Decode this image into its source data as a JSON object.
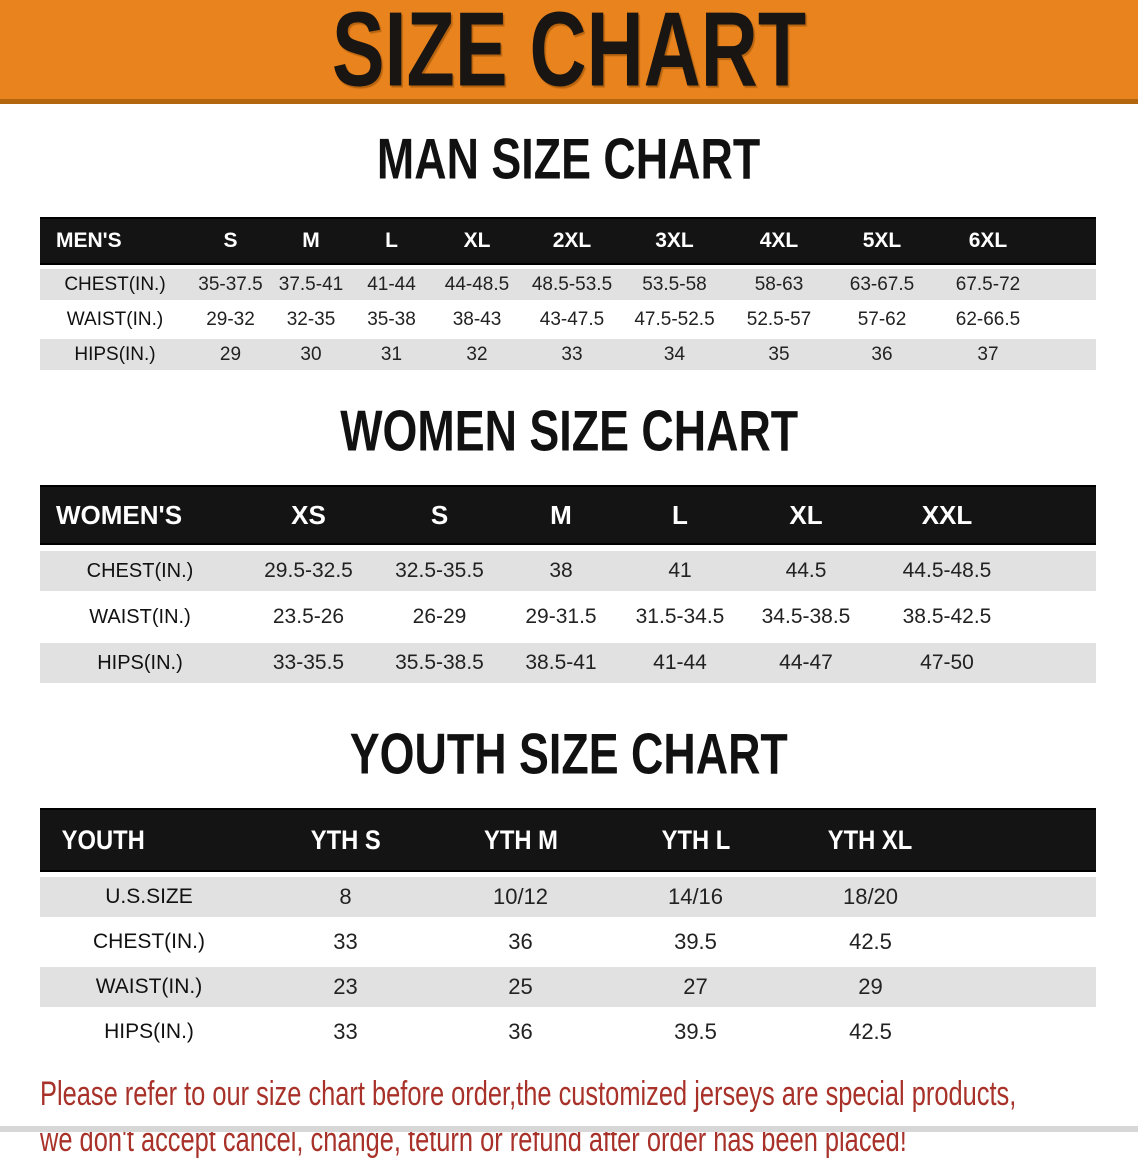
{
  "banner": {
    "title": "SIZE CHART",
    "bg_color": "#e8831d",
    "edge_color": "#b4660f"
  },
  "sections": [
    {
      "id": "men",
      "title": "MAN SIZE CHART",
      "header_label": "MEN'S",
      "columns": [
        "S",
        "M",
        "L",
        "XL",
        "2XL",
        "3XL",
        "4XL",
        "5XL",
        "6XL"
      ],
      "rows": [
        {
          "label": "CHEST(IN.)",
          "values": [
            "35-37.5",
            "37.5-41",
            "41-44",
            "44-48.5",
            "48.5-53.5",
            "53.5-58",
            "58-63",
            "63-67.5",
            "67.5-72"
          ]
        },
        {
          "label": "WAIST(IN.)",
          "values": [
            "29-32",
            "32-35",
            "35-38",
            "38-43",
            "43-47.5",
            "47.5-52.5",
            "52.5-57",
            "57-62",
            "62-66.5"
          ]
        },
        {
          "label": "HIPS(IN.)",
          "values": [
            "29",
            "30",
            "31",
            "32",
            "33",
            "34",
            "35",
            "36",
            "37"
          ]
        }
      ]
    },
    {
      "id": "women",
      "title": "WOMEN SIZE CHART",
      "header_label": "WOMEN'S",
      "columns": [
        "XS",
        "S",
        "M",
        "L",
        "XL",
        "XXL"
      ],
      "rows": [
        {
          "label": "CHEST(IN.)",
          "values": [
            "29.5-32.5",
            "32.5-35.5",
            "38",
            "41",
            "44.5",
            "44.5-48.5"
          ]
        },
        {
          "label": "WAIST(IN.)",
          "values": [
            "23.5-26",
            "26-29",
            "29-31.5",
            "31.5-34.5",
            "34.5-38.5",
            "38.5-42.5"
          ]
        },
        {
          "label": "HIPS(IN.)",
          "values": [
            "33-35.5",
            "35.5-38.5",
            "38.5-41",
            "41-44",
            "44-47",
            "47-50"
          ]
        }
      ]
    },
    {
      "id": "youth",
      "title": "YOUTH SIZE CHART",
      "header_label": "YOUTH",
      "columns": [
        "YTH S",
        "YTH M",
        "YTH L",
        "YTH XL"
      ],
      "rows": [
        {
          "label": "U.S.SIZE",
          "values": [
            "8",
            "10/12",
            "14/16",
            "18/20"
          ]
        },
        {
          "label": "CHEST(IN.)",
          "values": [
            "33",
            "36",
            "39.5",
            "42.5"
          ]
        },
        {
          "label": "WAIST(IN.)",
          "values": [
            "23",
            "25",
            "27",
            "29"
          ]
        },
        {
          "label": "HIPS(IN.)",
          "values": [
            "33",
            "36",
            "39.5",
            "42.5"
          ]
        }
      ]
    }
  ],
  "footer": {
    "line1": "Please refer to our size chart before order,the customized jerseys are special products,",
    "line2": "we don't accept cancel, change, teturn or refund after order has been placed!",
    "text_color": "#a8322a"
  }
}
